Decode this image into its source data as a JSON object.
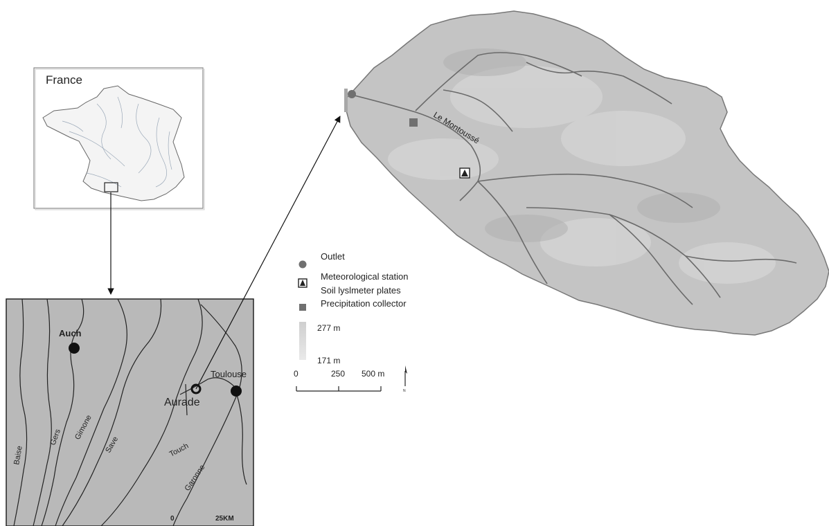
{
  "inset_france": {
    "title": "France"
  },
  "regional_map": {
    "cities": [
      {
        "name": "Auch"
      },
      {
        "name": "Toulouse"
      },
      {
        "name": "Aurade"
      }
    ],
    "rivers": [
      "Baise",
      "Gers",
      "Gimone",
      "Save",
      "Touch",
      "Garonne"
    ],
    "scalebar": {
      "start": "0",
      "end": "25KM"
    }
  },
  "catchment_map": {
    "stream_name": "Le Montoussé"
  },
  "legend": {
    "items": [
      {
        "label": "Outlet",
        "symbol": "circle"
      },
      {
        "label": "Meteorological station",
        "symbol": "station"
      },
      {
        "label": "Soil lyslmeter plates",
        "symbol": "none"
      },
      {
        "label": "Precipitation collector",
        "symbol": "square"
      }
    ],
    "elevation_max": "277 m",
    "elevation_min": "171 m",
    "scalebar": {
      "t0": "0",
      "t1": "250",
      "t2": "500 m"
    },
    "north": "N"
  },
  "colors": {
    "regional_fill": "#b9b9b9",
    "catchment_fill": "#c4c4c4",
    "symbol_gray": "#707070",
    "river_line": "#222222"
  }
}
